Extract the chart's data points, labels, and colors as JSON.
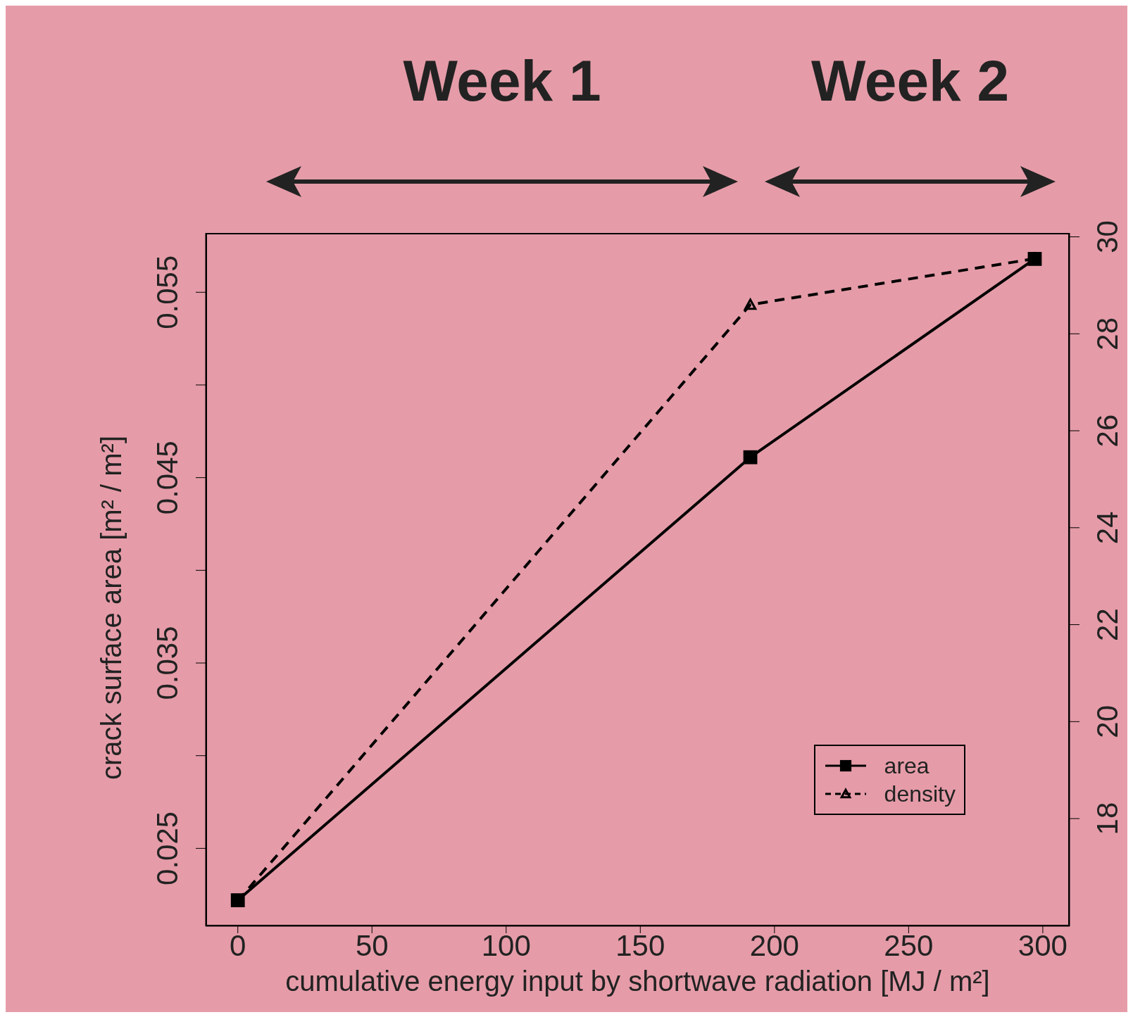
{
  "chart_data": {
    "type": "line",
    "xlabel": "cumulative energy input by shortwave radiation [MJ / m²]",
    "ylabel": "crack surface area [m² / m²]",
    "annotations": [
      "Week 1",
      "Week 2"
    ],
    "x": [
      0,
      191,
      297
    ],
    "series": [
      {
        "name": "area",
        "color": "#000000",
        "values": [
          0.0222,
          0.0461,
          0.0568
        ],
        "marker": "square",
        "line_style": "solid"
      },
      {
        "name": "density",
        "color": "#000000",
        "values": [
          16.3,
          28.6,
          29.55
        ],
        "axis": "y2",
        "marker": "triangle",
        "line_style": "dashed"
      }
    ],
    "xlim": [
      -12,
      310
    ],
    "xticks": [
      0,
      50,
      100,
      150,
      200,
      250,
      300
    ],
    "ylim": [
      0.0208,
      0.0582
    ],
    "yticks": [
      0.025,
      {
        "value": 0.03,
        "label": null
      },
      0.035,
      {
        "value": 0.04,
        "label": null
      },
      0.045,
      {
        "value": 0.05,
        "label": null
      },
      0.055
    ],
    "y2lim": [
      15.78,
      30.08
    ],
    "y2ticks": [
      18,
      20,
      22,
      24,
      26,
      28,
      30
    ],
    "legend": "bottom right",
    "grid": false
  }
}
